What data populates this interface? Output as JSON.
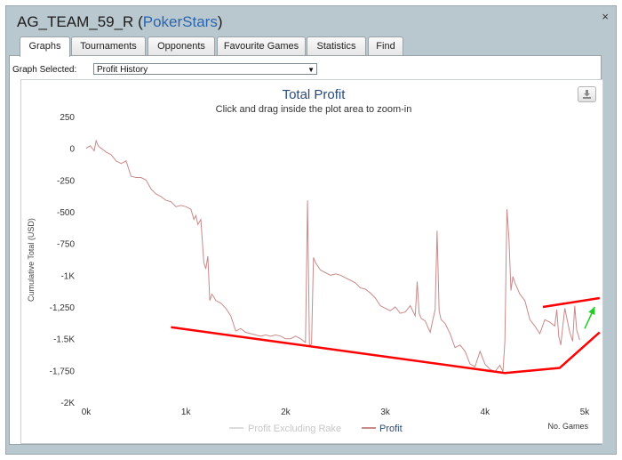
{
  "window": {
    "player_name": "AG_TEAM_59_R",
    "site_name": "PokerStars",
    "close_symbol": "×"
  },
  "tabs": [
    {
      "label": "Graphs",
      "active": true
    },
    {
      "label": "Tournaments",
      "active": false
    },
    {
      "label": "Opponents",
      "active": false
    },
    {
      "label": "Favourite Games",
      "active": false
    },
    {
      "label": "Statistics",
      "active": false
    },
    {
      "label": "Find",
      "active": false
    }
  ],
  "graph_selector": {
    "label": "Graph Selected:",
    "value": "Profit History"
  },
  "chart_data": {
    "type": "line",
    "title": "Total Profit",
    "subtitle": "Click and drag inside the plot area to zoom-in",
    "ylabel": "Cumulative Total (USD)",
    "xlabel": "No. Games",
    "xlim": [
      0,
      5000
    ],
    "ylim": [
      -2000,
      250
    ],
    "x_ticks": [
      {
        "value": 0,
        "label": "0k"
      },
      {
        "value": 1000,
        "label": "1k"
      },
      {
        "value": 2000,
        "label": "2k"
      },
      {
        "value": 3000,
        "label": "3k"
      },
      {
        "value": 4000,
        "label": "4k"
      },
      {
        "value": 5000,
        "label": "5k"
      }
    ],
    "y_ticks": [
      {
        "value": 250,
        "label": "250"
      },
      {
        "value": 0,
        "label": "0"
      },
      {
        "value": -250,
        "label": "-250"
      },
      {
        "value": -500,
        "label": "-500"
      },
      {
        "value": -750,
        "label": "-750"
      },
      {
        "value": -1000,
        "label": "-1K"
      },
      {
        "value": -1250,
        "label": "-1,250"
      },
      {
        "value": -1500,
        "label": "-1.5K"
      },
      {
        "value": -1750,
        "label": "-1,750"
      },
      {
        "value": -2000,
        "label": "-2K"
      }
    ],
    "grid": false,
    "legend_position": "bottom",
    "series": [
      {
        "name": "Profit Excluding Rake",
        "color": "#e0e0e0",
        "values": []
      },
      {
        "name": "Profit",
        "color": "#c98a8a",
        "x": [
          0,
          40,
          80,
          100,
          120,
          150,
          200,
          250,
          300,
          350,
          400,
          450,
          500,
          550,
          600,
          650,
          700,
          750,
          800,
          850,
          900,
          950,
          1000,
          1050,
          1080,
          1100,
          1120,
          1150,
          1180,
          1200,
          1220,
          1240,
          1260,
          1280,
          1300,
          1350,
          1400,
          1450,
          1500,
          1550,
          1600,
          1650,
          1700,
          1750,
          1800,
          1850,
          1900,
          1950,
          2000,
          2050,
          2100,
          2150,
          2200,
          2220,
          2240,
          2260,
          2280,
          2300,
          2350,
          2400,
          2450,
          2500,
          2550,
          2600,
          2650,
          2700,
          2750,
          2800,
          2850,
          2900,
          2950,
          3000,
          3050,
          3100,
          3150,
          3200,
          3250,
          3300,
          3320,
          3340,
          3360,
          3400,
          3450,
          3500,
          3520,
          3540,
          3560,
          3600,
          3650,
          3700,
          3750,
          3800,
          3850,
          3900,
          3950,
          4000,
          4050,
          4100,
          4150,
          4180,
          4200,
          4220,
          4240,
          4260,
          4280,
          4300,
          4350,
          4400,
          4450,
          4500,
          4550,
          4600,
          4650,
          4700,
          4720,
          4740,
          4760,
          4800,
          4850,
          4880,
          4900,
          4920,
          4950
        ],
        "values": [
          0,
          20,
          -20,
          60,
          20,
          0,
          -30,
          -50,
          -100,
          -120,
          -100,
          -220,
          -230,
          -230,
          -250,
          -320,
          -360,
          -380,
          -410,
          -420,
          -460,
          -450,
          -460,
          -480,
          -560,
          -530,
          -600,
          -560,
          -900,
          -950,
          -850,
          -1200,
          -1150,
          -1170,
          -1200,
          -1220,
          -1260,
          -1320,
          -1440,
          -1420,
          -1450,
          -1460,
          -1470,
          -1480,
          -1470,
          -1480,
          -1470,
          -1480,
          -1500,
          -1500,
          -1480,
          -1500,
          -1530,
          -410,
          -1560,
          -1540,
          -860,
          -900,
          -960,
          -980,
          -1000,
          -990,
          -1000,
          -1020,
          -1040,
          -1060,
          -1100,
          -1110,
          -1140,
          -1180,
          -1240,
          -1260,
          -1280,
          -1250,
          -1300,
          -1290,
          -1240,
          -1320,
          -1050,
          -1300,
          -1340,
          -1360,
          -1450,
          -1270,
          -650,
          -1280,
          -1350,
          -1380,
          -1460,
          -1570,
          -1550,
          -1600,
          -1700,
          -1720,
          -1600,
          -1700,
          -1740,
          -1760,
          -1710,
          -1760,
          -1520,
          -480,
          -700,
          -1120,
          -1010,
          -1060,
          -1150,
          -1200,
          -1350,
          -1400,
          -1460,
          -1350,
          -1370,
          -1400,
          -1270,
          -1480,
          -1550,
          -1260,
          -1450,
          -1520,
          -1240,
          -1430,
          -1510
        ]
      }
    ],
    "annotations": [
      {
        "type": "line",
        "color": "#ff0000",
        "points": [
          [
            850,
            -1410
          ],
          [
            4200,
            -1770
          ],
          [
            4750,
            -1730
          ],
          [
            5150,
            -1450
          ]
        ]
      },
      {
        "type": "line",
        "color": "#ff0000",
        "points": [
          [
            4580,
            -1250
          ],
          [
            5150,
            -1180
          ]
        ]
      },
      {
        "type": "arrow",
        "color": "#22cc22",
        "points": [
          [
            5000,
            -1420
          ],
          [
            5100,
            -1250
          ]
        ]
      }
    ]
  }
}
